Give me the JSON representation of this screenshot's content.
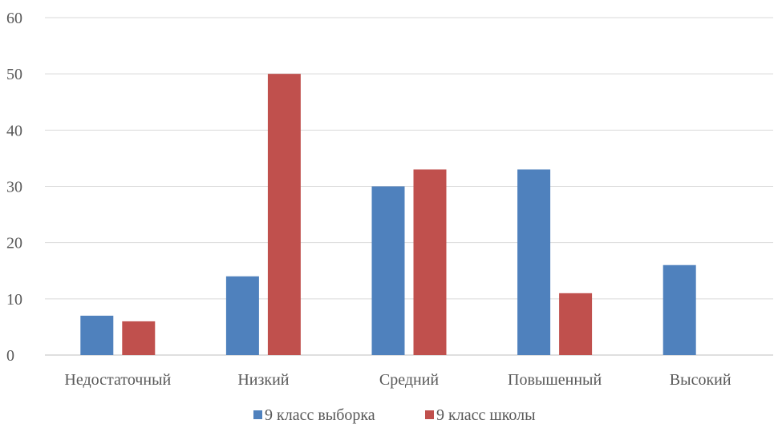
{
  "chart_data": {
    "type": "bar",
    "categories": [
      "Недостаточный",
      "Низкий",
      "Средний",
      "Повышенный",
      "Высокий"
    ],
    "series": [
      {
        "name": "9 класс выборка",
        "values": [
          7,
          14,
          30,
          33,
          16
        ],
        "color": "#4f81bd"
      },
      {
        "name": "9 класс школы",
        "values": [
          6,
          50,
          33,
          11,
          0
        ],
        "color": "#c0504d"
      }
    ],
    "ylim": [
      0,
      60
    ],
    "yticks": [
      0,
      10,
      20,
      30,
      40,
      50,
      60
    ],
    "grid": true,
    "legend": "bottom"
  }
}
